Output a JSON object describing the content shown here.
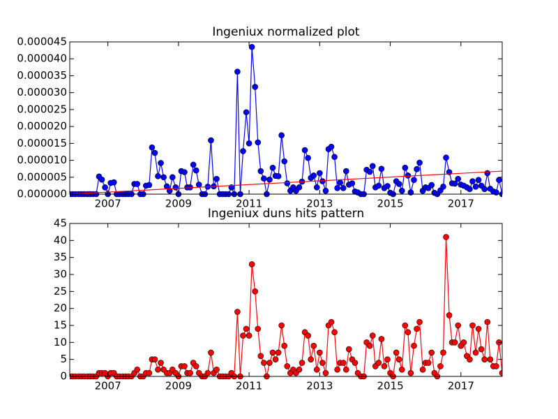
{
  "chart_data": [
    {
      "type": "line",
      "title": "Ingeniux normalized plot",
      "x": [
        2005.92,
        2006,
        2006.08,
        2006.17,
        2006.25,
        2006.33,
        2006.42,
        2006.5,
        2006.58,
        2006.67,
        2006.75,
        2006.83,
        2006.92,
        2007,
        2007.08,
        2007.17,
        2007.25,
        2007.33,
        2007.42,
        2007.5,
        2007.58,
        2007.67,
        2007.75,
        2007.83,
        2007.92,
        2008,
        2008.08,
        2008.17,
        2008.25,
        2008.33,
        2008.42,
        2008.5,
        2008.58,
        2008.67,
        2008.75,
        2008.83,
        2008.92,
        2009,
        2009.08,
        2009.17,
        2009.25,
        2009.33,
        2009.42,
        2009.5,
        2009.58,
        2009.67,
        2009.75,
        2009.83,
        2009.92,
        2010,
        2010.08,
        2010.17,
        2010.25,
        2010.33,
        2010.42,
        2010.5,
        2010.58,
        2010.67,
        2010.75,
        2010.83,
        2010.92,
        2011,
        2011.08,
        2011.17,
        2011.25,
        2011.33,
        2011.42,
        2011.5,
        2011.58,
        2011.67,
        2011.75,
        2011.83,
        2011.92,
        2012,
        2012.08,
        2012.17,
        2012.25,
        2012.33,
        2012.42,
        2012.5,
        2012.58,
        2012.67,
        2012.75,
        2012.83,
        2012.92,
        2013,
        2013.08,
        2013.17,
        2013.25,
        2013.33,
        2013.42,
        2013.5,
        2013.58,
        2013.67,
        2013.75,
        2013.83,
        2013.92,
        2014,
        2014.08,
        2014.17,
        2014.25,
        2014.33,
        2014.42,
        2014.5,
        2014.58,
        2014.67,
        2014.75,
        2014.83,
        2014.92,
        2015,
        2015.08,
        2015.17,
        2015.25,
        2015.33,
        2015.42,
        2015.5,
        2015.58,
        2015.67,
        2015.75,
        2015.83,
        2015.92,
        2016,
        2016.08,
        2016.17,
        2016.25,
        2016.33,
        2016.42,
        2016.5,
        2016.58,
        2016.67,
        2016.75,
        2016.83,
        2016.92,
        2017,
        2017.08,
        2017.17,
        2017.25,
        2017.33,
        2017.42,
        2017.5,
        2017.58,
        2017.67,
        2017.75,
        2017.83,
        2017.92,
        2018,
        2018.08,
        2018.17
      ],
      "series": [
        {
          "color": "#0000ff",
          "marker": true,
          "values": [
            0,
            0,
            0,
            0,
            0,
            0,
            0,
            0,
            0,
            0,
            5.2e-06,
            4.3e-06,
            2e-06,
            0,
            3.3e-06,
            3.5e-06,
            0,
            0,
            0,
            0,
            0,
            0,
            3e-06,
            3e-06,
            0,
            0,
            2.5e-06,
            2.7e-06,
            1.38e-05,
            1.22e-05,
            5.3e-06,
            9.2e-06,
            5e-06,
            2.3e-06,
            1e-06,
            5e-06,
            2e-06,
            0,
            6.8e-06,
            6.5e-06,
            2e-06,
            2e-06,
            8.7e-06,
            7e-06,
            2.8e-06,
            0,
            0,
            2.2e-06,
            1.59e-05,
            2.3e-06,
            4.5e-06,
            0,
            0,
            0,
            0,
            2e-06,
            0,
            3.62e-05,
            0,
            1.27e-05,
            2.42e-05,
            1.5e-05,
            4.35e-05,
            3.17e-05,
            1.53e-05,
            6.8e-06,
            4.6e-06,
            0,
            4.3e-06,
            7.8e-06,
            5.4e-06,
            5.3e-06,
            1.74e-05,
            9.7e-06,
            3.2e-06,
            1e-06,
            2e-06,
            1e-06,
            2e-06,
            3.7e-06,
            1.3e-05,
            1.07e-05,
            4.8e-06,
            5.5e-06,
            2e-06,
            6.2e-06,
            3.8e-06,
            1e-06,
            1.33e-05,
            1.4e-05,
            1.1e-05,
            1.8e-06,
            3.4e-06,
            1.8e-06,
            6.8e-06,
            2.8e-06,
            3.2e-06,
            8e-07,
            5e-07,
            0,
            0,
            7.2e-06,
            6.6e-06,
            8.3e-06,
            2e-06,
            2.5e-06,
            7.5e-06,
            1.8e-06,
            2.4e-06,
            4e-07,
            0,
            3.8e-06,
            3e-06,
            1e-06,
            7.8e-06,
            5.5e-06,
            5e-07,
            4.2e-06,
            7.4e-06,
            9.3e-06,
            1e-06,
            2e-06,
            1.8e-06,
            2.7e-06,
            4e-07,
            0,
            1.1e-06,
            2.2e-06,
            1.08e-05,
            6.5e-06,
            3.2e-06,
            3.1e-06,
            4.5e-06,
            2.8e-06,
            2.5e-06,
            2e-06,
            1.5e-06,
            3.8e-06,
            2.2e-06,
            4.2e-06,
            2.5e-06,
            1.5e-06,
            6.2e-06,
            1.6e-06,
            8e-07,
            5e-07,
            4.2e-06,
            0
          ]
        },
        {
          "color": "#ff0000",
          "marker": false,
          "x": [
            2005.92,
            2018.17
          ],
          "values": [
            0,
            6.8e-06
          ]
        }
      ],
      "xlim": [
        2005.92,
        2018.17
      ],
      "xticks": [
        2007,
        2009,
        2011,
        2013,
        2015,
        2017
      ],
      "ylim": [
        0,
        4.5e-05
      ],
      "yticks": [
        {
          "value": 0,
          "label": "0.000000"
        },
        {
          "value": 5e-06,
          "label": "0.000005"
        },
        {
          "value": 1e-05,
          "label": "0.000010"
        },
        {
          "value": 1.5e-05,
          "label": "0.000015"
        },
        {
          "value": 2e-05,
          "label": "0.000020"
        },
        {
          "value": 2.5e-05,
          "label": "0.000025"
        },
        {
          "value": 3e-05,
          "label": "0.000030"
        },
        {
          "value": 3.5e-05,
          "label": "0.000035"
        },
        {
          "value": 4e-05,
          "label": "0.000040"
        },
        {
          "value": 4.5e-05,
          "label": "0.000045"
        }
      ]
    },
    {
      "type": "line",
      "title": "Ingeniux duns hits pattern",
      "series": [
        {
          "color": "#ff0000",
          "marker": true,
          "values": [
            0,
            0,
            0,
            0,
            0,
            0,
            0,
            0,
            0,
            0,
            1,
            1,
            1,
            0,
            1,
            1,
            0,
            0,
            0,
            0,
            0,
            0,
            1,
            2,
            0,
            0,
            1,
            1,
            5,
            5,
            2,
            4,
            2,
            1,
            1,
            2,
            1,
            0,
            3,
            3,
            1,
            1,
            4,
            3,
            1,
            0,
            0,
            1,
            7,
            1,
            2,
            0,
            0,
            0,
            0,
            1,
            0,
            19,
            0,
            12,
            14,
            12,
            33,
            25,
            14,
            6,
            4,
            0,
            4,
            7,
            5,
            7,
            15,
            9,
            3,
            1,
            2,
            1,
            2,
            4,
            13,
            12,
            5,
            9,
            2,
            7,
            4,
            1,
            15,
            16,
            13,
            2,
            4,
            4,
            2,
            8,
            5,
            4,
            1,
            0,
            0,
            10,
            9,
            12,
            3,
            4,
            11,
            3,
            5,
            1,
            0,
            7,
            5,
            2,
            15,
            13,
            1,
            9,
            14,
            16,
            2,
            4,
            4,
            7,
            1,
            0,
            3,
            7,
            41,
            18,
            10,
            10,
            15,
            9,
            10,
            6,
            5,
            15,
            7,
            14,
            8,
            5,
            16,
            5,
            3,
            3,
            10,
            1
          ]
        }
      ],
      "xlim": [
        2005.92,
        2018.17
      ],
      "xticks": [
        2007,
        2009,
        2011,
        2013,
        2015,
        2017
      ],
      "ylim": [
        0,
        45
      ],
      "yticks": [
        0,
        5,
        10,
        15,
        20,
        25,
        30,
        35,
        40,
        45
      ]
    }
  ]
}
